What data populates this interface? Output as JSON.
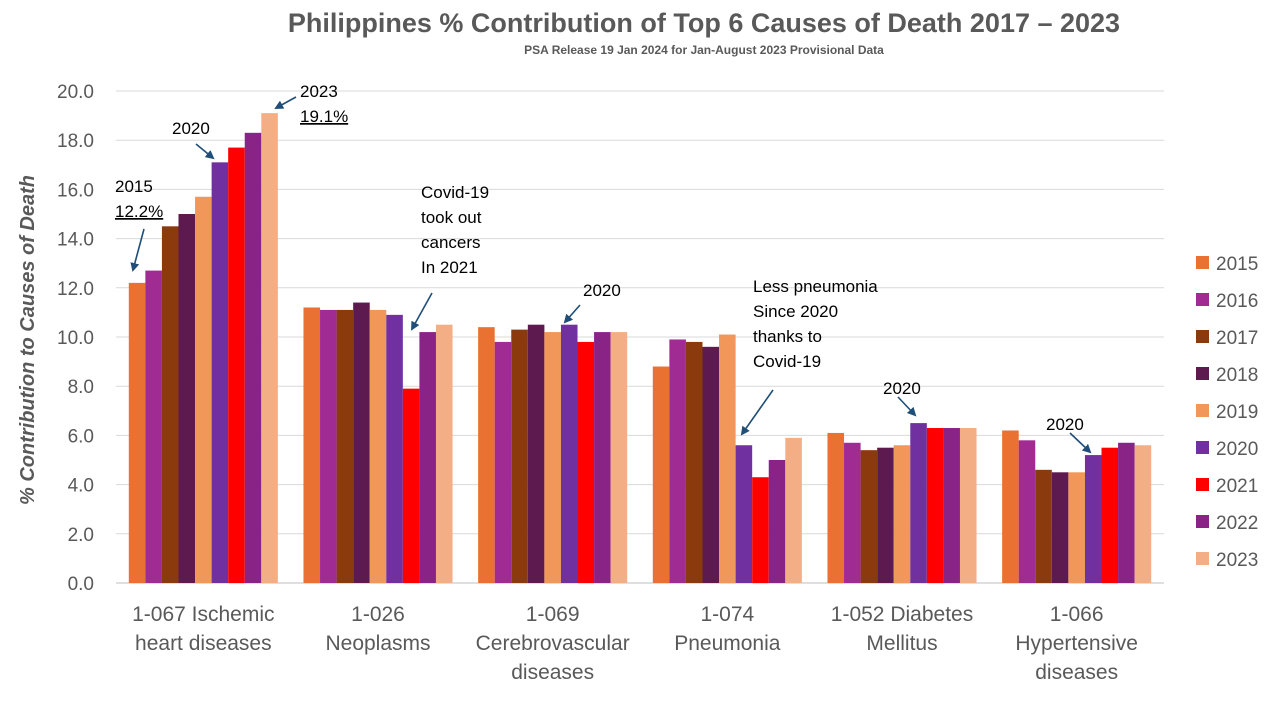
{
  "chart_data": {
    "type": "bar",
    "title": "Philippines % Contribution of Top 6 Causes of Death 2017 – 2023",
    "subtitle": "PSA Release 19 Jan 2024 for Jan-August 2023 Provisional Data",
    "ylabel": "% Contribution to Causes of Death",
    "xlabel": "",
    "ylim": [
      0,
      20
    ],
    "yticks": [
      "0.0",
      "2.0",
      "4.0",
      "6.0",
      "8.0",
      "10.0",
      "12.0",
      "14.0",
      "16.0",
      "18.0",
      "20.0"
    ],
    "grid": true,
    "legend_position": "right",
    "categories": [
      [
        "1-067  Ischemic",
        "heart diseases"
      ],
      [
        "1-026",
        "Neoplasms"
      ],
      [
        "1-069",
        "Cerebrovascular",
        "diseases"
      ],
      [
        "1-074",
        "Pneumonia"
      ],
      [
        "1-052  Diabetes",
        "Mellitus"
      ],
      [
        "1-066",
        "Hypertensive",
        "diseases"
      ]
    ],
    "series": [
      {
        "name": "2015",
        "color": "#E97132",
        "values": [
          12.2,
          11.2,
          10.4,
          8.8,
          6.1,
          6.2
        ]
      },
      {
        "name": "2016",
        "color": "#A02B93",
        "values": [
          12.7,
          11.1,
          9.8,
          9.9,
          5.7,
          5.8
        ]
      },
      {
        "name": "2017",
        "color": "#8B3A0E",
        "values": [
          14.5,
          11.1,
          10.3,
          9.8,
          5.4,
          4.6
        ]
      },
      {
        "name": "2018",
        "color": "#5C1A4E",
        "values": [
          15.0,
          11.4,
          10.5,
          9.6,
          5.5,
          4.5
        ]
      },
      {
        "name": "2019",
        "color": "#F1975A",
        "values": [
          15.7,
          11.1,
          10.2,
          10.1,
          5.6,
          4.5
        ]
      },
      {
        "name": "2020",
        "color": "#7030A0",
        "values": [
          17.1,
          10.9,
          10.5,
          5.6,
          6.5,
          5.2
        ]
      },
      {
        "name": "2021",
        "color": "#FF0000",
        "values": [
          17.7,
          7.9,
          9.8,
          4.3,
          6.3,
          5.5
        ]
      },
      {
        "name": "2022",
        "color": "#8A2386",
        "values": [
          18.3,
          10.2,
          10.2,
          5.0,
          6.3,
          5.7
        ]
      },
      {
        "name": "2023",
        "color": "#F4AE85",
        "values": [
          19.1,
          10.5,
          10.2,
          5.9,
          6.3,
          5.6
        ]
      }
    ],
    "annotations": [
      {
        "lines": [
          "2015",
          "12.2%"
        ],
        "underline": [
          false,
          true
        ]
      },
      {
        "lines": [
          "2020"
        ],
        "underline": [
          false
        ]
      },
      {
        "lines": [
          "2023",
          "19.1%"
        ],
        "underline": [
          false,
          true
        ]
      },
      {
        "lines": [
          "Covid-19",
          "took out",
          "cancers",
          "In 2021"
        ],
        "underline": [
          false,
          false,
          false,
          false
        ]
      },
      {
        "lines": [
          "2020"
        ],
        "underline": [
          false
        ]
      },
      {
        "lines": [
          "Less pneumonia",
          "Since 2020",
          "thanks to",
          "Covid-19"
        ],
        "underline": [
          false,
          false,
          false,
          false
        ]
      },
      {
        "lines": [
          "2020"
        ],
        "underline": [
          false
        ]
      },
      {
        "lines": [
          "2020"
        ],
        "underline": [
          false
        ]
      }
    ],
    "colors": {
      "text": "#595959",
      "grid": "#D9D9D9",
      "axis": "#BFBFBF",
      "arrow": "#1F4E79",
      "annotation": "#000000"
    }
  }
}
